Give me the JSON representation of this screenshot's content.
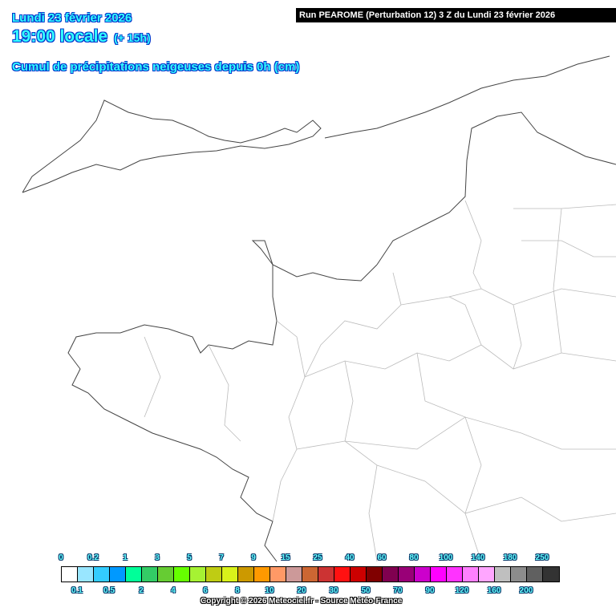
{
  "header": {
    "date": "Lundi 23 février 2026",
    "hour": "19:00 locale",
    "lead": "(+ 15h)",
    "title": "Cumul de précipitations neigeuses depuis 0h (cm)",
    "run": "Run PEAROME (Perturbation 12) 3 Z du Lundi 23 février 2026"
  },
  "legend": {
    "thresholds": [
      "0",
      "0.1",
      "0.2",
      "0.5",
      "1",
      "2",
      "3",
      "4",
      "5",
      "6",
      "7",
      "8",
      "9",
      "10",
      "15",
      "20",
      "25",
      "30",
      "40",
      "50",
      "60",
      "70",
      "80",
      "90",
      "100",
      "120",
      "140",
      "160",
      "180",
      "200",
      "250"
    ],
    "colors": [
      "#ffffff",
      "#99e6ff",
      "#33ccff",
      "#0099ff",
      "#00ff99",
      "#33cc66",
      "#66cc33",
      "#66ff00",
      "#a6f233",
      "#bfcc13",
      "#d9f21a",
      "#cc9900",
      "#ff9900",
      "#ff9966",
      "#cc9999",
      "#cc6633",
      "#cc3333",
      "#ff1111",
      "#cc0000",
      "#800000",
      "#800050",
      "#990077",
      "#cc00cc",
      "#ff00ff",
      "#ff33ff",
      "#ff80ff",
      "#ffa6ff",
      "#bfbfbf",
      "#8c8c8c",
      "#606060",
      "#333333"
    ]
  },
  "footer": {
    "copyright": "Copyright © 2026 Meteociel.fr - Source Météo-France"
  }
}
